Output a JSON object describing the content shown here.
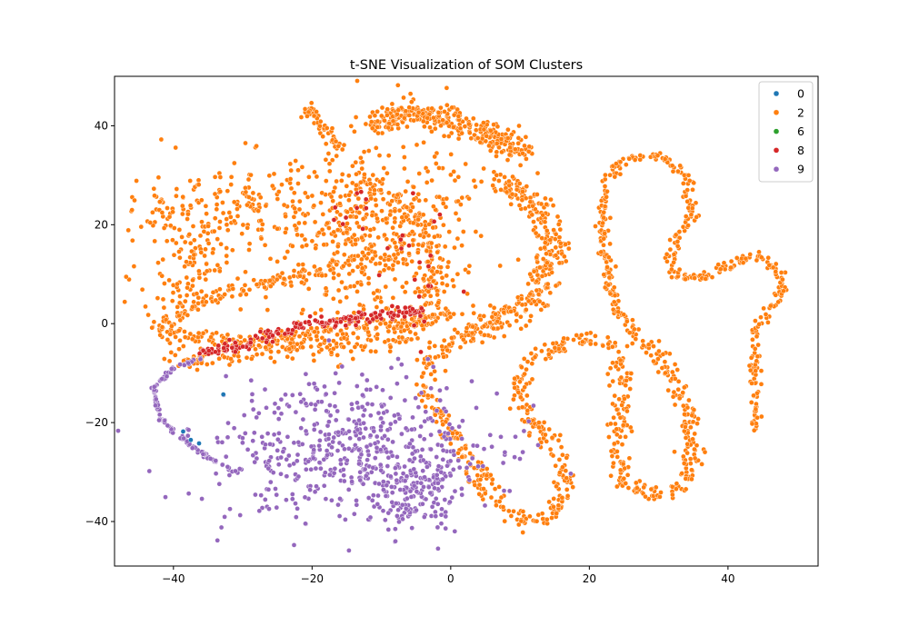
{
  "chart_data": {
    "type": "scatter",
    "title": "t-SNE Visualization of SOM Clusters",
    "xlabel": "",
    "ylabel": "",
    "xlim": [
      -48.5,
      53
    ],
    "ylim": [
      -49,
      50
    ],
    "xticks": [
      -40,
      -20,
      0,
      20,
      40
    ],
    "yticks": [
      -40,
      -20,
      0,
      20,
      40
    ],
    "xtick_labels": [
      "−40",
      "−20",
      "0",
      "20",
      "40"
    ],
    "ytick_labels": [
      "−40",
      "−20",
      "0",
      "20",
      "40"
    ],
    "grid": false,
    "legend": {
      "placement": "top-right",
      "entries": [
        "0",
        "2",
        "6",
        "8",
        "9"
      ]
    },
    "series": [
      {
        "name": "0",
        "color": "#1f77b4",
        "points": [
          [
            -32.8,
            -14.3
          ],
          [
            -37.5,
            -23.5
          ],
          [
            -36.3,
            -24.2
          ],
          [
            -38.6,
            -21.8
          ]
        ]
      },
      {
        "name": "2",
        "color": "#ff7f0e",
        "shapes": [
          {
            "kind": "blob",
            "center": [
              -28,
              23
            ],
            "spread": [
              12,
              5
            ],
            "count": 260
          },
          {
            "kind": "blob",
            "center": [
              -38,
              12
            ],
            "spread": [
              3.5,
              9
            ],
            "count": 120
          },
          {
            "kind": "path",
            "points": [
              [
                -42,
                -1
              ],
              [
                -36,
                5
              ],
              [
                -28,
                8
              ],
              [
                -18,
                11
              ],
              [
                -12,
                13
              ]
            ],
            "width": 1.8,
            "count": 140
          },
          {
            "kind": "path",
            "points": [
              [
                -21,
                44
              ],
              [
                -18,
                39
              ],
              [
                -16,
                35
              ]
            ],
            "width": 1.2,
            "count": 50
          },
          {
            "kind": "blob",
            "center": [
              -10,
              17
            ],
            "spread": [
              7,
              11
            ],
            "count": 450
          },
          {
            "kind": "path",
            "points": [
              [
                -42,
                -1
              ],
              [
                -33,
                -4
              ],
              [
                -24,
                -3
              ],
              [
                -14,
                -1
              ],
              [
                -6,
                0
              ],
              [
                0,
                2
              ]
            ],
            "width": 1.8,
            "count": 220
          },
          {
            "kind": "path",
            "points": [
              [
                -13,
                29
              ],
              [
                -8,
                25
              ],
              [
                -4,
                19
              ],
              [
                -2,
                11
              ],
              [
                -3,
                3
              ],
              [
                -7,
                -3
              ],
              [
                -16,
                -5
              ],
              [
                -26,
                -6
              ],
              [
                -34,
                -7
              ],
              [
                -40,
                -8
              ]
            ],
            "width": 2.0,
            "count": 250
          },
          {
            "kind": "path",
            "points": [
              [
                -11,
                40
              ],
              [
                -6,
                43
              ],
              [
                0,
                41
              ],
              [
                6,
                38
              ],
              [
                11,
                35
              ]
            ],
            "width": 2.5,
            "count": 300
          },
          {
            "kind": "path",
            "points": [
              [
                6,
                30
              ],
              [
                12,
                24
              ],
              [
                15,
                15
              ],
              [
                12,
                5
              ],
              [
                6,
                0
              ],
              [
                1,
                -3
              ]
            ],
            "width": 2.5,
            "count": 330
          },
          {
            "kind": "path",
            "points": [
              [
                1,
                -3
              ],
              [
                -3,
                -7
              ],
              [
                -4,
                -13
              ],
              [
                -1,
                -21
              ],
              [
                4,
                -30
              ],
              [
                7,
                -37
              ],
              [
                11,
                -40
              ],
              [
                15,
                -39
              ],
              [
                17,
                -32
              ],
              [
                15,
                -25
              ],
              [
                11,
                -19
              ],
              [
                10,
                -12
              ],
              [
                12,
                -7
              ],
              [
                17,
                -4
              ],
              [
                21,
                -3
              ],
              [
                24,
                -5
              ],
              [
                25,
                -15
              ],
              [
                24,
                -25
              ],
              [
                25,
                -32
              ],
              [
                29,
                -35
              ],
              [
                33,
                -33
              ],
              [
                35,
                -25
              ],
              [
                34,
                -16
              ],
              [
                32,
                -10
              ],
              [
                29,
                -5
              ],
              [
                27,
                -3
              ]
            ],
            "width": 1.6,
            "count": 650
          },
          {
            "kind": "path",
            "points": [
              [
                27,
                -3
              ],
              [
                24,
                3
              ],
              [
                23,
                8
              ],
              [
                22,
                18
              ],
              [
                22,
                28
              ],
              [
                25,
                33
              ],
              [
                30,
                34
              ],
              [
                34,
                30
              ],
              [
                35,
                22
              ],
              [
                32,
                16
              ],
              [
                32,
                10
              ],
              [
                36,
                9
              ],
              [
                40,
                12
              ],
              [
                44,
                14
              ],
              [
                47,
                11
              ],
              [
                48,
                7
              ],
              [
                46,
                3
              ],
              [
                44,
                -2
              ],
              [
                44,
                -10
              ],
              [
                44,
                -17
              ],
              [
                44,
                -21
              ]
            ],
            "width": 0.9,
            "count": 420
          }
        ]
      },
      {
        "name": "6",
        "color": "#2ca02c",
        "points": []
      },
      {
        "name": "8",
        "color": "#d62728",
        "shapes": [
          {
            "kind": "path",
            "points": [
              [
                -36,
                -6
              ],
              [
                -30,
                -4
              ],
              [
                -25,
                -2
              ],
              [
                -20,
                0
              ],
              [
                -14,
                1
              ],
              [
                -8,
                2
              ],
              [
                -4,
                3
              ]
            ],
            "width": 1.2,
            "count": 170
          },
          {
            "kind": "blob",
            "center": [
              -5,
              10
            ],
            "spread": [
              2.5,
              7
            ],
            "count": 25
          },
          {
            "kind": "blob",
            "center": [
              -15,
              23
            ],
            "spread": [
              3,
              3
            ],
            "count": 10
          }
        ]
      },
      {
        "name": "9",
        "color": "#9467bd",
        "shapes": [
          {
            "kind": "blob",
            "center": [
              -14,
              -25
            ],
            "spread": [
              10,
              7
            ],
            "count": 520
          },
          {
            "kind": "blob",
            "center": [
              -6,
              -34
            ],
            "spread": [
              3.5,
              4
            ],
            "count": 160
          },
          {
            "kind": "path",
            "points": [
              [
                -36,
                -7
              ],
              [
                -40,
                -9
              ],
              [
                -43,
                -13
              ],
              [
                -42,
                -19
              ],
              [
                -39,
                -23
              ],
              [
                -35,
                -27
              ],
              [
                -31,
                -30
              ]
            ],
            "width": 0.3,
            "count": 120
          }
        ]
      }
    ]
  }
}
